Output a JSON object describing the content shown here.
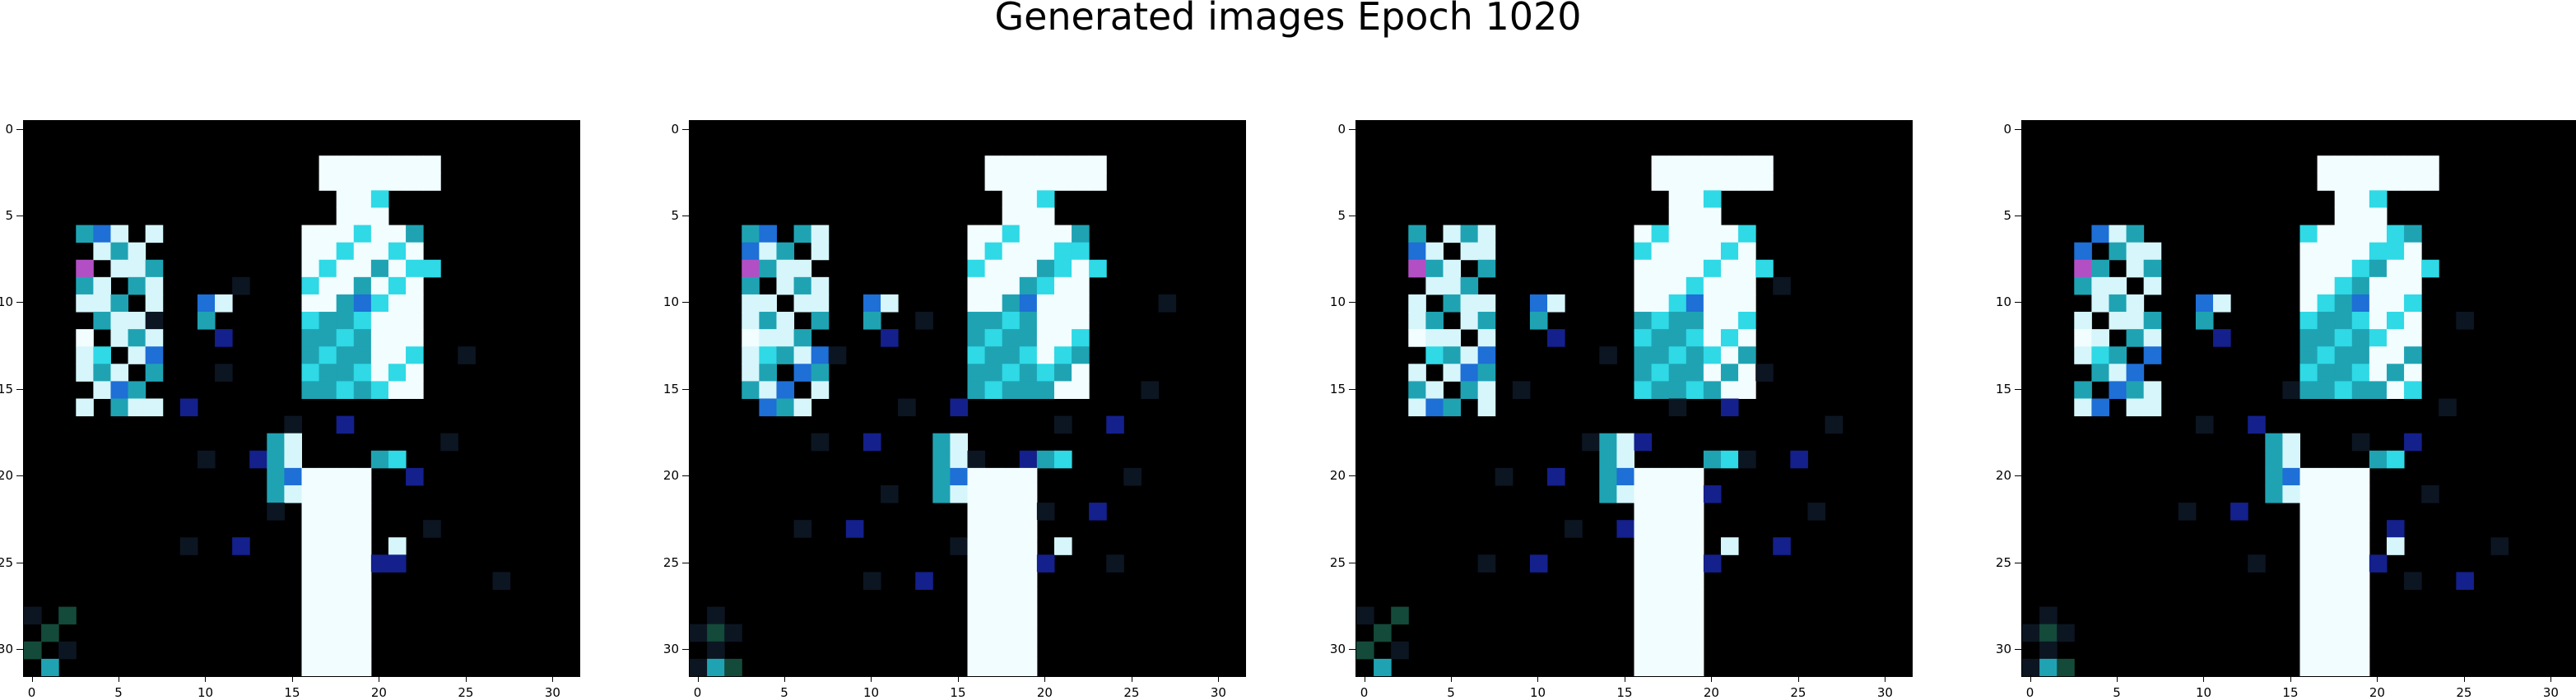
{
  "figure": {
    "title": "Generated images Epoch 1020"
  },
  "panels": [
    {
      "id": 1
    },
    {
      "id": 2
    },
    {
      "id": 3
    },
    {
      "id": 4
    }
  ],
  "axes": {
    "x_ticks": [
      "0",
      "5",
      "10",
      "15",
      "20",
      "25",
      "30"
    ],
    "y_ticks": [
      "0",
      "5",
      "10",
      "15",
      "20",
      "25",
      "30"
    ],
    "x_range": [
      -0.5,
      31.5
    ],
    "y_range": [
      -0.5,
      31.5
    ],
    "y_inverted": true
  },
  "image": {
    "grid": 32,
    "background": "#000000",
    "palette": {
      "white": "#f2fdff",
      "icy": "#d6f6fb",
      "cyan": "#2fd9e6",
      "teal": "#1fa3b3",
      "blue": "#1e6fd6",
      "navy": "#14208c",
      "magenta": "#b34fc4",
      "dark": "#0c1622",
      "green": "#144a3a"
    }
  }
}
